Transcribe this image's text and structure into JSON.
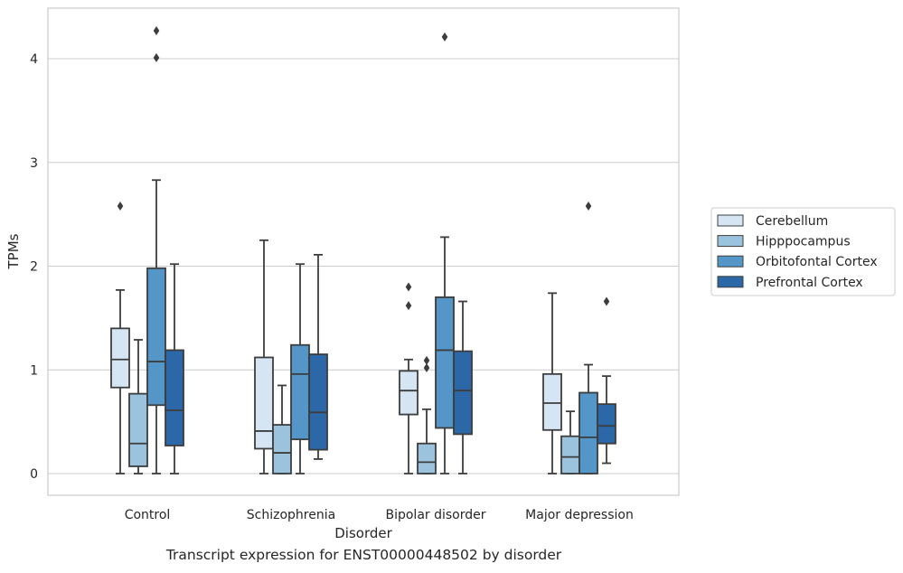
{
  "chart_data": {
    "type": "box",
    "title": "",
    "xlabel": "Disorder",
    "ylabel": "TPMs",
    "caption": "Transcript expression for ENST00000448502 by disorder",
    "ylim": [
      -0.2,
      4.5
    ],
    "yticks": [
      "0",
      "1",
      "2",
      "3",
      "4"
    ],
    "grid": "horizontal",
    "legend_position": "right",
    "categories": [
      "Control",
      "Schizophrenia",
      "Bipolar disorder",
      "Major depression"
    ],
    "series": [
      {
        "name": "Cerebellum",
        "color": "#d6e5f3",
        "boxes": [
          {
            "whislo": 0.0,
            "q1": 0.83,
            "med": 1.1,
            "q3": 1.4,
            "whishi": 1.77,
            "fliers": [
              2.58
            ]
          },
          {
            "whislo": 0.0,
            "q1": 0.24,
            "med": 0.41,
            "q3": 1.12,
            "whishi": 2.25,
            "fliers": []
          },
          {
            "whislo": 0.0,
            "q1": 0.57,
            "med": 0.8,
            "q3": 0.99,
            "whishi": 1.1,
            "fliers": [
              1.62,
              1.8
            ]
          },
          {
            "whislo": 0.0,
            "q1": 0.42,
            "med": 0.68,
            "q3": 0.96,
            "whishi": 1.74,
            "fliers": []
          }
        ]
      },
      {
        "name": "Hipppocampus",
        "color": "#9cc3dd",
        "boxes": [
          {
            "whislo": 0.0,
            "q1": 0.07,
            "med": 0.29,
            "q3": 0.77,
            "whishi": 1.29,
            "fliers": []
          },
          {
            "whislo": 0.0,
            "q1": 0.0,
            "med": 0.2,
            "q3": 0.47,
            "whishi": 0.85,
            "fliers": []
          },
          {
            "whislo": 0.0,
            "q1": 0.0,
            "med": 0.11,
            "q3": 0.29,
            "whishi": 0.62,
            "fliers": [
              1.02,
              1.09
            ]
          },
          {
            "whislo": 0.0,
            "q1": 0.0,
            "med": 0.16,
            "q3": 0.36,
            "whishi": 0.6,
            "fliers": []
          }
        ]
      },
      {
        "name": "Orbitofontal Cortex",
        "color": "#5496c7",
        "boxes": [
          {
            "whislo": 0.0,
            "q1": 0.66,
            "med": 1.08,
            "q3": 1.98,
            "whishi": 2.83,
            "fliers": [
              4.01,
              4.27
            ]
          },
          {
            "whislo": 0.0,
            "q1": 0.33,
            "med": 0.96,
            "q3": 1.24,
            "whishi": 2.02,
            "fliers": []
          },
          {
            "whislo": 0.0,
            "q1": 0.44,
            "med": 1.19,
            "q3": 1.7,
            "whishi": 2.28,
            "fliers": [
              4.21
            ]
          },
          {
            "whislo": 0.0,
            "q1": 0.0,
            "med": 0.35,
            "q3": 0.78,
            "whishi": 1.05,
            "fliers": [
              2.58
            ]
          }
        ]
      },
      {
        "name": "Prefrontal Cortex",
        "color": "#2c67a8",
        "boxes": [
          {
            "whislo": 0.0,
            "q1": 0.27,
            "med": 0.61,
            "q3": 1.19,
            "whishi": 2.02,
            "fliers": []
          },
          {
            "whislo": 0.14,
            "q1": 0.23,
            "med": 0.59,
            "q3": 1.15,
            "whishi": 2.11,
            "fliers": []
          },
          {
            "whislo": 0.0,
            "q1": 0.38,
            "med": 0.8,
            "q3": 1.18,
            "whishi": 1.66,
            "fliers": []
          },
          {
            "whislo": 0.1,
            "q1": 0.29,
            "med": 0.46,
            "q3": 0.67,
            "whishi": 0.94,
            "fliers": [
              1.66
            ]
          }
        ]
      }
    ]
  }
}
